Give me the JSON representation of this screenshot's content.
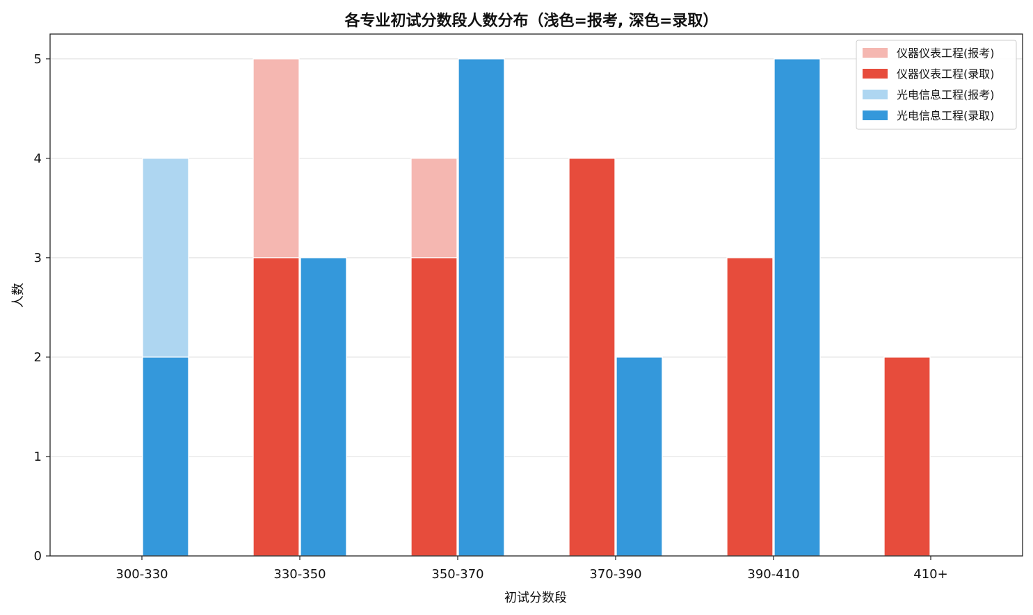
{
  "chart_data": {
    "type": "bar",
    "title": "各专业初试分数段人数分布（浅色=报考, 深色=录取）",
    "xlabel": "初试分数段",
    "ylabel": "人数",
    "categories": [
      "300-330",
      "330-350",
      "350-370",
      "370-390",
      "390-410",
      "410+"
    ],
    "ylim": [
      0,
      5.25
    ],
    "yticks": [
      0,
      1,
      2,
      3,
      4,
      5
    ],
    "grid": "horizontal",
    "legend_position": "top-right",
    "series": [
      {
        "name": "仪器仪表工程(报考)",
        "group": "仪器仪表工程",
        "kind": "报考",
        "color": "#f5b7b1",
        "values": [
          0,
          5,
          4,
          0,
          0,
          0
        ]
      },
      {
        "name": "仪器仪表工程(录取)",
        "group": "仪器仪表工程",
        "kind": "录取",
        "color": "#e74c3c",
        "values": [
          0,
          3,
          3,
          4,
          3,
          2
        ]
      },
      {
        "name": "光电信息工程(报考)",
        "group": "光电信息工程",
        "kind": "报考",
        "color": "#aed6f1",
        "values": [
          4,
          3,
          5,
          2,
          5,
          0
        ]
      },
      {
        "name": "光电信息工程(录取)",
        "group": "光电信息工程",
        "kind": "录取",
        "color": "#3498db",
        "values": [
          2,
          3,
          5,
          2,
          5,
          0
        ]
      }
    ]
  }
}
